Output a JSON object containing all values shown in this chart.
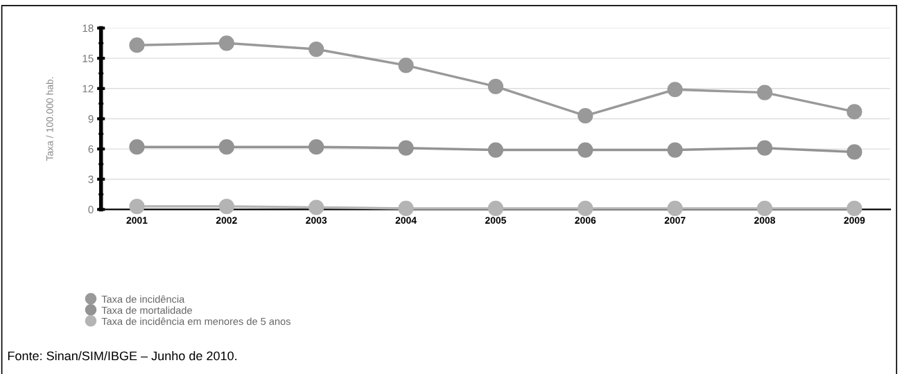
{
  "chart_data": {
    "type": "line",
    "ylabel": "Taxa / 100.000 hab.",
    "categories": [
      "2001",
      "2002",
      "2003",
      "2004",
      "2005",
      "2006",
      "2007",
      "2008",
      "2009"
    ],
    "series": [
      {
        "name": "Taxa de incidência",
        "color": "#999999",
        "values": [
          16.3,
          16.5,
          15.9,
          14.3,
          12.2,
          9.3,
          11.9,
          11.6,
          9.7
        ]
      },
      {
        "name": "Taxa de mortalidade",
        "color": "#939393",
        "values": [
          6.2,
          6.2,
          6.2,
          6.1,
          5.9,
          5.9,
          5.9,
          6.1,
          5.7
        ]
      },
      {
        "name": "Taxa de incidência em menores de 5 anos",
        "color": "#b4b4b4",
        "values": [
          0.3,
          0.3,
          0.2,
          0.1,
          0.1,
          0.1,
          0.1,
          0.1,
          0.1
        ]
      }
    ],
    "ylim": [
      0,
      18
    ],
    "yticks": [
      0,
      3,
      6,
      9,
      12,
      15,
      18
    ],
    "grid": "y",
    "legend": "bottom left",
    "marker": "circle",
    "line_style": "solid",
    "annotations": [
      "Fonte: Sinan/SIM/IBGE – Junho de 2010."
    ]
  }
}
